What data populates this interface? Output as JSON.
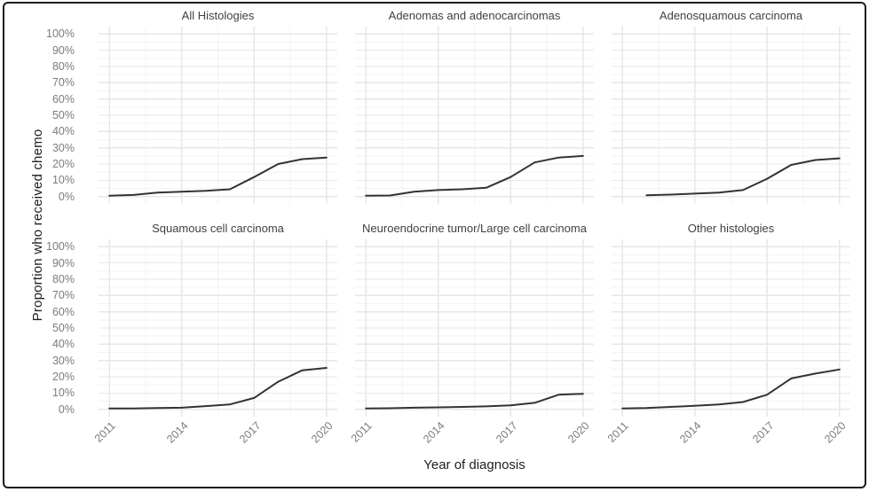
{
  "figure": {
    "y_axis_label": "Proportion who received chemo",
    "x_axis_label": "Year of diagnosis",
    "y_tick_labels": [
      "0%",
      "10%",
      "20%",
      "30%",
      "40%",
      "50%",
      "60%",
      "70%",
      "80%",
      "90%",
      "100%"
    ],
    "x_tick_labels": [
      "2011",
      "2014",
      "2017",
      "2020"
    ],
    "colors": {
      "background": "#ffffff",
      "border": "#1c1c1c",
      "line": "#333333",
      "grid_major": "#e7e7e7",
      "grid_minor": "#f3f3f3",
      "tick_text": "#7b7b7b",
      "title_text": "#414141",
      "axis_label_text": "#1f1f1f"
    }
  },
  "chart_config": {
    "x_domain": [
      2010.55,
      2020.45
    ],
    "y_domain": [
      -4.5,
      104.5
    ],
    "y_major": [
      0,
      10,
      20,
      30,
      40,
      50,
      60,
      70,
      80,
      90,
      100
    ],
    "y_minor": [
      5,
      15,
      25,
      35,
      45,
      55,
      65,
      75,
      85,
      95
    ],
    "x_major": [
      2011,
      2014,
      2017,
      2020
    ],
    "x_minor": [
      2012.5,
      2015.5,
      2018.5
    ],
    "legend": "none",
    "grid": true
  },
  "chart_data": [
    {
      "type": "line",
      "title": "All Histologies",
      "x": [
        2011,
        2012,
        2013,
        2014,
        2015,
        2016,
        2017,
        2018,
        2019,
        2020
      ],
      "values": [
        0.5,
        1,
        2.5,
        3,
        3.5,
        4.5,
        12,
        20,
        23,
        24
      ],
      "xlabel": "Year of diagnosis",
      "ylabel": "Proportion who received chemo",
      "ylim": [
        0,
        100
      ],
      "xlim": [
        2011,
        2020
      ]
    },
    {
      "type": "line",
      "title": "Adenomas and adenocarcinomas",
      "x": [
        2011,
        2012,
        2013,
        2014,
        2015,
        2016,
        2017,
        2018,
        2019,
        2020
      ],
      "values": [
        0.5,
        0.7,
        3,
        4,
        4.5,
        5.5,
        12,
        21,
        24,
        25
      ],
      "xlabel": "Year of diagnosis",
      "ylabel": "Proportion who received chemo",
      "ylim": [
        0,
        100
      ],
      "xlim": [
        2011,
        2020
      ]
    },
    {
      "type": "line",
      "title": "Adenosquamous carcinoma",
      "x": [
        2012,
        2013,
        2014,
        2015,
        2016,
        2017,
        2018,
        2019,
        2020
      ],
      "values": [
        0.8,
        1.2,
        1.8,
        2.5,
        4,
        11,
        19.5,
        22.5,
        23.5
      ],
      "xlabel": "Year of diagnosis",
      "ylabel": "Proportion who received chemo",
      "ylim": [
        0,
        100
      ],
      "xlim": [
        2011,
        2020
      ]
    },
    {
      "type": "line",
      "title": "Squamous cell carcinoma",
      "x": [
        2011,
        2012,
        2013,
        2014,
        2015,
        2016,
        2017,
        2018,
        2019,
        2020
      ],
      "values": [
        0.5,
        0.5,
        0.8,
        1,
        2,
        3,
        7,
        17,
        24,
        25.5
      ],
      "xlabel": "Year of diagnosis",
      "ylabel": "Proportion who received chemo",
      "ylim": [
        0,
        100
      ],
      "xlim": [
        2011,
        2020
      ]
    },
    {
      "type": "line",
      "title": "Neuroendocrine tumor/Large cell carcinoma",
      "x": [
        2011,
        2012,
        2013,
        2014,
        2015,
        2016,
        2017,
        2018,
        2019,
        2020
      ],
      "values": [
        0.5,
        0.7,
        1,
        1.2,
        1.5,
        1.8,
        2.5,
        4,
        9,
        9.5
      ],
      "xlabel": "Year of diagnosis",
      "ylabel": "Proportion who received chemo",
      "ylim": [
        0,
        100
      ],
      "xlim": [
        2011,
        2020
      ]
    },
    {
      "type": "line",
      "title": "Other histologies",
      "x": [
        2011,
        2012,
        2013,
        2014,
        2015,
        2016,
        2017,
        2018,
        2019,
        2020
      ],
      "values": [
        0.5,
        0.8,
        1.5,
        2.2,
        3,
        4.5,
        9,
        19,
        22,
        24.5
      ],
      "xlabel": "Year of diagnosis",
      "ylabel": "Proportion who received chemo",
      "ylim": [
        0,
        100
      ],
      "xlim": [
        2011,
        2020
      ]
    }
  ]
}
